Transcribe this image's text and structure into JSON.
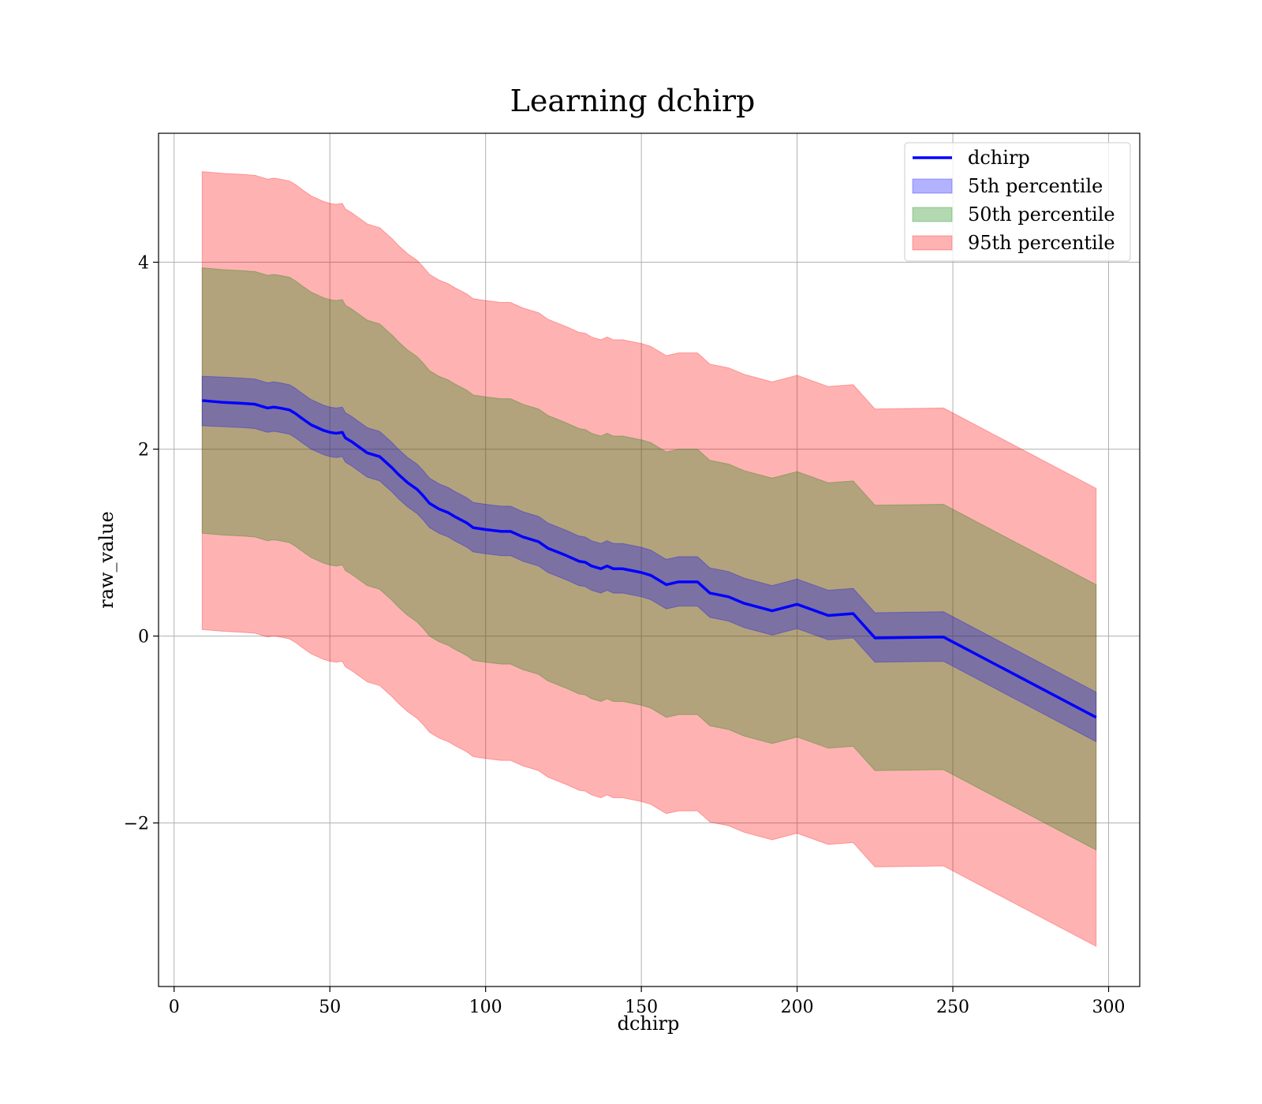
{
  "chart_data": {
    "type": "area",
    "title": "Learning dchirp",
    "xlabel": "dchirp",
    "ylabel": "raw_value",
    "xlim": [
      -5,
      310
    ],
    "ylim": [
      -3.75,
      5.38
    ],
    "xticks": [
      0,
      50,
      100,
      150,
      200,
      250,
      300
    ],
    "xtick_labels": [
      "0",
      "50",
      "100",
      "150",
      "200",
      "250",
      "300"
    ],
    "yticks": [
      -2,
      0,
      2,
      4
    ],
    "ytick_labels": [
      "−2",
      "0",
      "2",
      "4"
    ],
    "grid": true,
    "legend_position": "top-right",
    "colors": {
      "line": "#0000ff",
      "band_5th": "#0000ff",
      "band_50th": "#008000",
      "band_95th": "#ff0000",
      "grid": "#b0b0b0"
    },
    "series": [
      {
        "name": "dchirp",
        "kind": "line",
        "x": [
          9,
          16,
          22,
          26,
          28,
          30,
          32,
          34,
          37,
          39,
          41,
          44,
          48,
          50,
          52,
          54,
          55,
          57,
          62,
          66,
          70,
          72,
          75,
          78,
          80,
          82,
          83,
          85,
          88,
          90,
          94,
          96,
          100,
          105,
          108,
          112,
          117,
          120,
          123,
          126,
          130,
          132,
          134,
          137,
          139,
          141,
          144,
          147,
          150,
          153,
          158,
          162,
          165,
          168,
          172,
          178,
          183,
          192,
          200,
          210,
          218,
          225,
          247,
          296
        ],
        "y": [
          2.52,
          2.5,
          2.49,
          2.48,
          2.46,
          2.44,
          2.45,
          2.44,
          2.42,
          2.38,
          2.33,
          2.26,
          2.2,
          2.18,
          2.17,
          2.18,
          2.12,
          2.08,
          1.96,
          1.92,
          1.8,
          1.73,
          1.64,
          1.57,
          1.5,
          1.42,
          1.4,
          1.36,
          1.32,
          1.28,
          1.21,
          1.16,
          1.14,
          1.12,
          1.12,
          1.06,
          1.01,
          0.94,
          0.9,
          0.86,
          0.8,
          0.79,
          0.75,
          0.72,
          0.75,
          0.72,
          0.72,
          0.7,
          0.68,
          0.65,
          0.55,
          0.58,
          0.58,
          0.58,
          0.46,
          0.42,
          0.35,
          0.27,
          0.34,
          0.22,
          0.24,
          -0.02,
          -0.01,
          -0.87
        ]
      },
      {
        "name": "5th percentile",
        "kind": "band",
        "x": [
          9,
          16,
          22,
          26,
          28,
          30,
          32,
          34,
          37,
          39,
          41,
          44,
          48,
          50,
          52,
          54,
          55,
          57,
          62,
          66,
          70,
          72,
          75,
          78,
          80,
          82,
          83,
          85,
          88,
          90,
          94,
          96,
          100,
          105,
          108,
          112,
          117,
          120,
          123,
          126,
          130,
          132,
          134,
          137,
          139,
          141,
          144,
          147,
          150,
          153,
          158,
          162,
          165,
          168,
          172,
          178,
          183,
          192,
          200,
          210,
          218,
          225,
          247,
          296
        ],
        "lower": [
          2.25,
          2.24,
          2.23,
          2.22,
          2.2,
          2.18,
          2.19,
          2.18,
          2.16,
          2.12,
          2.07,
          2.0,
          1.94,
          1.92,
          1.91,
          1.92,
          1.86,
          1.82,
          1.7,
          1.66,
          1.54,
          1.47,
          1.38,
          1.31,
          1.24,
          1.16,
          1.14,
          1.1,
          1.06,
          1.02,
          0.95,
          0.9,
          0.88,
          0.86,
          0.86,
          0.8,
          0.75,
          0.68,
          0.64,
          0.6,
          0.54,
          0.53,
          0.49,
          0.46,
          0.49,
          0.46,
          0.46,
          0.44,
          0.42,
          0.39,
          0.29,
          0.32,
          0.32,
          0.32,
          0.2,
          0.16,
          0.09,
          0.01,
          0.08,
          -0.04,
          -0.02,
          -0.28,
          -0.27,
          -1.13
        ],
        "upper": [
          2.78,
          2.77,
          2.76,
          2.75,
          2.73,
          2.71,
          2.72,
          2.71,
          2.69,
          2.65,
          2.6,
          2.53,
          2.47,
          2.45,
          2.44,
          2.45,
          2.39,
          2.35,
          2.23,
          2.19,
          2.07,
          2.0,
          1.91,
          1.84,
          1.77,
          1.69,
          1.67,
          1.63,
          1.59,
          1.55,
          1.48,
          1.43,
          1.41,
          1.39,
          1.39,
          1.33,
          1.28,
          1.21,
          1.17,
          1.13,
          1.07,
          1.06,
          1.02,
          0.99,
          1.02,
          0.99,
          0.99,
          0.97,
          0.95,
          0.92,
          0.82,
          0.85,
          0.85,
          0.85,
          0.73,
          0.69,
          0.62,
          0.54,
          0.61,
          0.49,
          0.51,
          0.25,
          0.26,
          -0.6
        ]
      },
      {
        "name": "50th percentile",
        "kind": "band",
        "x": [
          9,
          16,
          22,
          26,
          28,
          30,
          32,
          34,
          37,
          39,
          41,
          44,
          48,
          50,
          52,
          54,
          55,
          57,
          62,
          66,
          70,
          72,
          75,
          78,
          80,
          82,
          83,
          85,
          88,
          90,
          94,
          96,
          100,
          105,
          108,
          112,
          117,
          120,
          123,
          126,
          130,
          132,
          134,
          137,
          139,
          141,
          144,
          147,
          150,
          153,
          158,
          162,
          165,
          168,
          172,
          178,
          183,
          192,
          200,
          210,
          218,
          225,
          247,
          296
        ],
        "lower": [
          1.1,
          1.08,
          1.07,
          1.06,
          1.04,
          1.02,
          1.03,
          1.02,
          1.0,
          0.96,
          0.91,
          0.84,
          0.78,
          0.76,
          0.75,
          0.76,
          0.7,
          0.66,
          0.54,
          0.5,
          0.38,
          0.31,
          0.22,
          0.15,
          0.08,
          0.0,
          -0.02,
          -0.06,
          -0.1,
          -0.14,
          -0.21,
          -0.26,
          -0.28,
          -0.3,
          -0.3,
          -0.36,
          -0.41,
          -0.48,
          -0.52,
          -0.56,
          -0.62,
          -0.63,
          -0.67,
          -0.7,
          -0.67,
          -0.7,
          -0.7,
          -0.72,
          -0.74,
          -0.77,
          -0.87,
          -0.84,
          -0.84,
          -0.84,
          -0.96,
          -1.0,
          -1.07,
          -1.15,
          -1.08,
          -1.2,
          -1.18,
          -1.44,
          -1.43,
          -2.29
        ],
        "upper": [
          3.94,
          3.92,
          3.91,
          3.9,
          3.88,
          3.86,
          3.87,
          3.86,
          3.84,
          3.8,
          3.75,
          3.68,
          3.62,
          3.6,
          3.59,
          3.6,
          3.54,
          3.5,
          3.38,
          3.34,
          3.22,
          3.15,
          3.06,
          2.99,
          2.92,
          2.84,
          2.82,
          2.78,
          2.74,
          2.7,
          2.63,
          2.58,
          2.56,
          2.54,
          2.54,
          2.48,
          2.43,
          2.36,
          2.32,
          2.28,
          2.22,
          2.21,
          2.17,
          2.14,
          2.17,
          2.14,
          2.14,
          2.12,
          2.1,
          2.07,
          1.97,
          2.0,
          2.0,
          2.0,
          1.88,
          1.84,
          1.77,
          1.69,
          1.76,
          1.64,
          1.66,
          1.4,
          1.41,
          0.55
        ]
      },
      {
        "name": "95th percentile",
        "kind": "band",
        "x": [
          9,
          16,
          22,
          26,
          28,
          30,
          32,
          34,
          37,
          39,
          41,
          44,
          48,
          50,
          52,
          54,
          55,
          57,
          62,
          66,
          70,
          72,
          75,
          78,
          80,
          82,
          83,
          85,
          88,
          90,
          94,
          96,
          100,
          105,
          108,
          112,
          117,
          120,
          123,
          126,
          130,
          132,
          134,
          137,
          139,
          141,
          144,
          147,
          150,
          153,
          158,
          162,
          165,
          168,
          172,
          178,
          183,
          192,
          200,
          210,
          218,
          225,
          247,
          296
        ],
        "lower": [
          0.07,
          0.05,
          0.04,
          0.03,
          0.01,
          -0.01,
          0.0,
          -0.01,
          -0.03,
          -0.07,
          -0.12,
          -0.19,
          -0.25,
          -0.27,
          -0.28,
          -0.27,
          -0.33,
          -0.37,
          -0.49,
          -0.53,
          -0.65,
          -0.72,
          -0.81,
          -0.88,
          -0.95,
          -1.03,
          -1.05,
          -1.09,
          -1.13,
          -1.17,
          -1.24,
          -1.29,
          -1.31,
          -1.33,
          -1.33,
          -1.39,
          -1.44,
          -1.51,
          -1.55,
          -1.59,
          -1.65,
          -1.66,
          -1.7,
          -1.73,
          -1.7,
          -1.73,
          -1.73,
          -1.75,
          -1.77,
          -1.8,
          -1.9,
          -1.87,
          -1.87,
          -1.87,
          -1.99,
          -2.03,
          -2.1,
          -2.18,
          -2.11,
          -2.23,
          -2.21,
          -2.47,
          -2.46,
          -3.32
        ],
        "upper": [
          4.97,
          4.95,
          4.94,
          4.93,
          4.91,
          4.89,
          4.9,
          4.89,
          4.87,
          4.83,
          4.78,
          4.71,
          4.65,
          4.63,
          4.62,
          4.63,
          4.57,
          4.53,
          4.41,
          4.37,
          4.25,
          4.18,
          4.09,
          4.02,
          3.95,
          3.87,
          3.85,
          3.81,
          3.77,
          3.73,
          3.66,
          3.61,
          3.59,
          3.57,
          3.57,
          3.51,
          3.46,
          3.39,
          3.35,
          3.31,
          3.25,
          3.24,
          3.2,
          3.17,
          3.2,
          3.17,
          3.17,
          3.15,
          3.13,
          3.1,
          3.0,
          3.03,
          3.03,
          3.03,
          2.91,
          2.87,
          2.8,
          2.72,
          2.79,
          2.67,
          2.69,
          2.43,
          2.44,
          1.58
        ]
      }
    ],
    "legend": [
      "dchirp",
      "5th percentile",
      "50th percentile",
      "95th percentile"
    ]
  }
}
